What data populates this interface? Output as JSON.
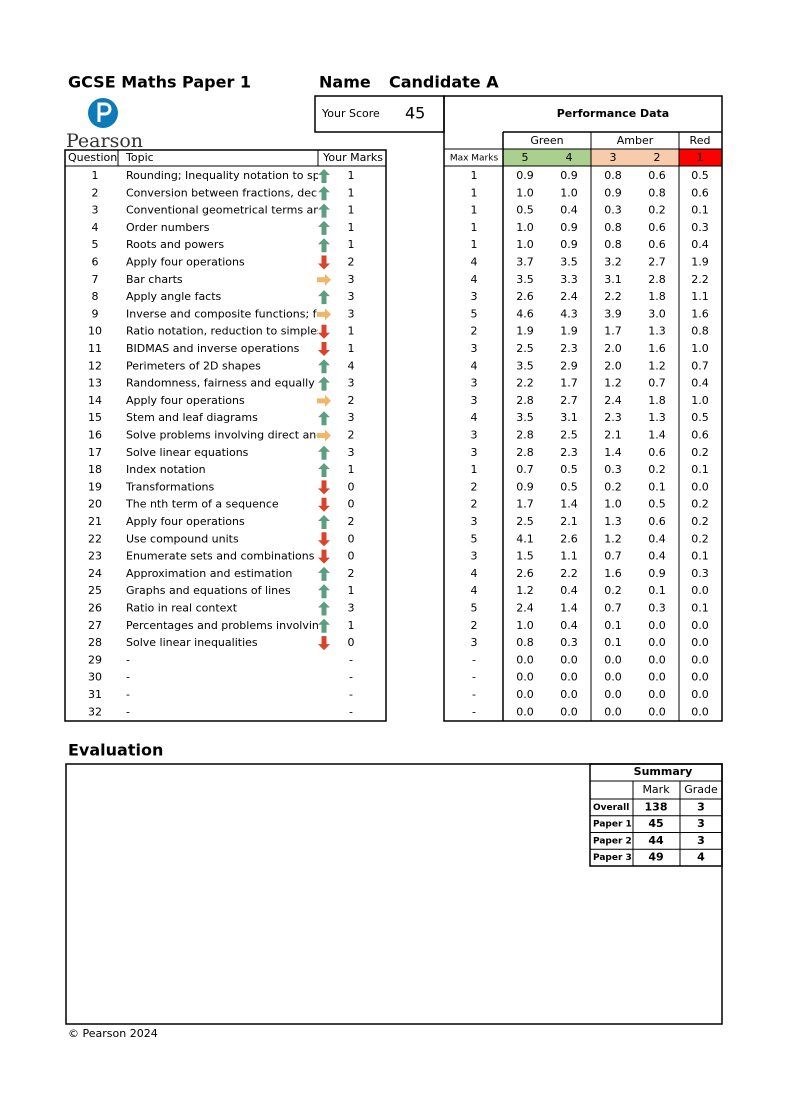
{
  "header": {
    "title": "GCSE Maths Paper 1",
    "name_label": "Name",
    "candidate": "Candidate A",
    "score_label": "Your Score",
    "score": "45",
    "logo": "Pearson"
  },
  "questions": {
    "columns": [
      "Question",
      "Topic",
      "Your Marks"
    ],
    "rows": [
      [
        "1",
        "Rounding; Inequality notation to sp",
        "up",
        "1"
      ],
      [
        "2",
        "Conversion between fractions, deci",
        "up",
        "1"
      ],
      [
        "3",
        "Conventional geometrical terms an",
        "up",
        "1"
      ],
      [
        "4",
        "Order numbers",
        "up",
        "1"
      ],
      [
        "5",
        "Roots and powers",
        "up",
        "1"
      ],
      [
        "6",
        "Apply four operations",
        "down",
        "2"
      ],
      [
        "7",
        "Bar charts",
        "right",
        "3"
      ],
      [
        "8",
        "Apply angle facts",
        "up",
        "3"
      ],
      [
        "9",
        "Inverse and composite functions; fo",
        "right",
        "3"
      ],
      [
        "10",
        "Ratio notation, reduction to simples",
        "down",
        "1"
      ],
      [
        "11",
        "BIDMAS and inverse operations",
        "down",
        "1"
      ],
      [
        "12",
        "Perimeters of 2D shapes",
        "up",
        "4"
      ],
      [
        "13",
        "Randomness, fairness and equally li",
        "up",
        "3"
      ],
      [
        "14",
        "Apply four operations",
        "right",
        "2"
      ],
      [
        "15",
        "Stem and leaf diagrams",
        "up",
        "3"
      ],
      [
        "16",
        "Solve problems involving direct and",
        "right",
        "2"
      ],
      [
        "17",
        "Solve linear equations",
        "up",
        "3"
      ],
      [
        "18",
        "Index notation",
        "up",
        "1"
      ],
      [
        "19",
        "Transformations",
        "down",
        "0"
      ],
      [
        "20",
        "The nth term of a sequence",
        "down",
        "0"
      ],
      [
        "21",
        "Apply four operations",
        "up",
        "2"
      ],
      [
        "22",
        "Use compound units",
        "down",
        "0"
      ],
      [
        "23",
        "Enumerate sets and combinations c",
        "down",
        "0"
      ],
      [
        "24",
        "Approximation and estimation",
        "up",
        "2"
      ],
      [
        "25",
        "Graphs and equations of lines",
        "up",
        "1"
      ],
      [
        "26",
        "Ratio in real context",
        "up",
        "3"
      ],
      [
        "27",
        "Percentages and problems involving",
        "up",
        "1"
      ],
      [
        "28",
        "Solve linear inequalities",
        "down",
        "0"
      ],
      [
        "29",
        "-",
        null,
        "-"
      ],
      [
        "30",
        "-",
        null,
        "-"
      ],
      [
        "31",
        "-",
        null,
        "-"
      ],
      [
        "32",
        "-",
        null,
        "-"
      ]
    ]
  },
  "performance": {
    "title": "Performance Data",
    "groups": [
      "Green",
      "Amber",
      "Red"
    ],
    "max_marks_label": "Max Marks",
    "grades": [
      "5",
      "4",
      "3",
      "2",
      "1"
    ],
    "rows": [
      [
        "1",
        "0.9",
        "0.9",
        "0.8",
        "0.6",
        "0.5"
      ],
      [
        "1",
        "1.0",
        "1.0",
        "0.9",
        "0.8",
        "0.6"
      ],
      [
        "1",
        "0.5",
        "0.4",
        "0.3",
        "0.2",
        "0.1"
      ],
      [
        "1",
        "1.0",
        "0.9",
        "0.8",
        "0.6",
        "0.3"
      ],
      [
        "1",
        "1.0",
        "0.9",
        "0.8",
        "0.6",
        "0.4"
      ],
      [
        "4",
        "3.7",
        "3.5",
        "3.2",
        "2.7",
        "1.9"
      ],
      [
        "4",
        "3.5",
        "3.3",
        "3.1",
        "2.8",
        "2.2"
      ],
      [
        "3",
        "2.6",
        "2.4",
        "2.2",
        "1.8",
        "1.1"
      ],
      [
        "5",
        "4.6",
        "4.3",
        "3.9",
        "3.0",
        "1.6"
      ],
      [
        "2",
        "1.9",
        "1.9",
        "1.7",
        "1.3",
        "0.8"
      ],
      [
        "3",
        "2.5",
        "2.3",
        "2.0",
        "1.6",
        "1.0"
      ],
      [
        "4",
        "3.5",
        "2.9",
        "2.0",
        "1.2",
        "0.7"
      ],
      [
        "3",
        "2.2",
        "1.7",
        "1.2",
        "0.7",
        "0.4"
      ],
      [
        "3",
        "2.8",
        "2.7",
        "2.4",
        "1.8",
        "1.0"
      ],
      [
        "4",
        "3.5",
        "3.1",
        "2.3",
        "1.3",
        "0.5"
      ],
      [
        "3",
        "2.8",
        "2.5",
        "2.1",
        "1.4",
        "0.6"
      ],
      [
        "3",
        "2.8",
        "2.3",
        "1.4",
        "0.6",
        "0.2"
      ],
      [
        "1",
        "0.7",
        "0.5",
        "0.3",
        "0.2",
        "0.1"
      ],
      [
        "2",
        "0.9",
        "0.5",
        "0.2",
        "0.1",
        "0.0"
      ],
      [
        "2",
        "1.7",
        "1.4",
        "1.0",
        "0.5",
        "0.2"
      ],
      [
        "3",
        "2.5",
        "2.1",
        "1.3",
        "0.6",
        "0.2"
      ],
      [
        "5",
        "4.1",
        "2.6",
        "1.2",
        "0.4",
        "0.2"
      ],
      [
        "3",
        "1.5",
        "1.1",
        "0.7",
        "0.4",
        "0.1"
      ],
      [
        "4",
        "2.6",
        "2.2",
        "1.6",
        "0.9",
        "0.3"
      ],
      [
        "4",
        "1.2",
        "0.4",
        "0.2",
        "0.1",
        "0.0"
      ],
      [
        "5",
        "2.4",
        "1.4",
        "0.7",
        "0.3",
        "0.1"
      ],
      [
        "2",
        "1.0",
        "0.4",
        "0.1",
        "0.0",
        "0.0"
      ],
      [
        "3",
        "0.8",
        "0.3",
        "0.1",
        "0.0",
        "0.0"
      ],
      [
        "-",
        "0.0",
        "0.0",
        "0.0",
        "0.0",
        "0.0"
      ],
      [
        "-",
        "0.0",
        "0.0",
        "0.0",
        "0.0",
        "0.0"
      ],
      [
        "-",
        "0.0",
        "0.0",
        "0.0",
        "0.0",
        "0.0"
      ],
      [
        "-",
        "0.0",
        "0.0",
        "0.0",
        "0.0",
        "0.0"
      ]
    ]
  },
  "evaluation": {
    "title": "Evaluation"
  },
  "summary": {
    "title": "Summary",
    "columns": [
      "Mark",
      "Grade"
    ],
    "rows": [
      [
        "Overall",
        "138",
        "3"
      ],
      [
        "Paper 1",
        "45",
        "3"
      ],
      [
        "Paper 2",
        "44",
        "3"
      ],
      [
        "Paper 3",
        "49",
        "4"
      ]
    ]
  },
  "footer": "© Pearson 2024"
}
